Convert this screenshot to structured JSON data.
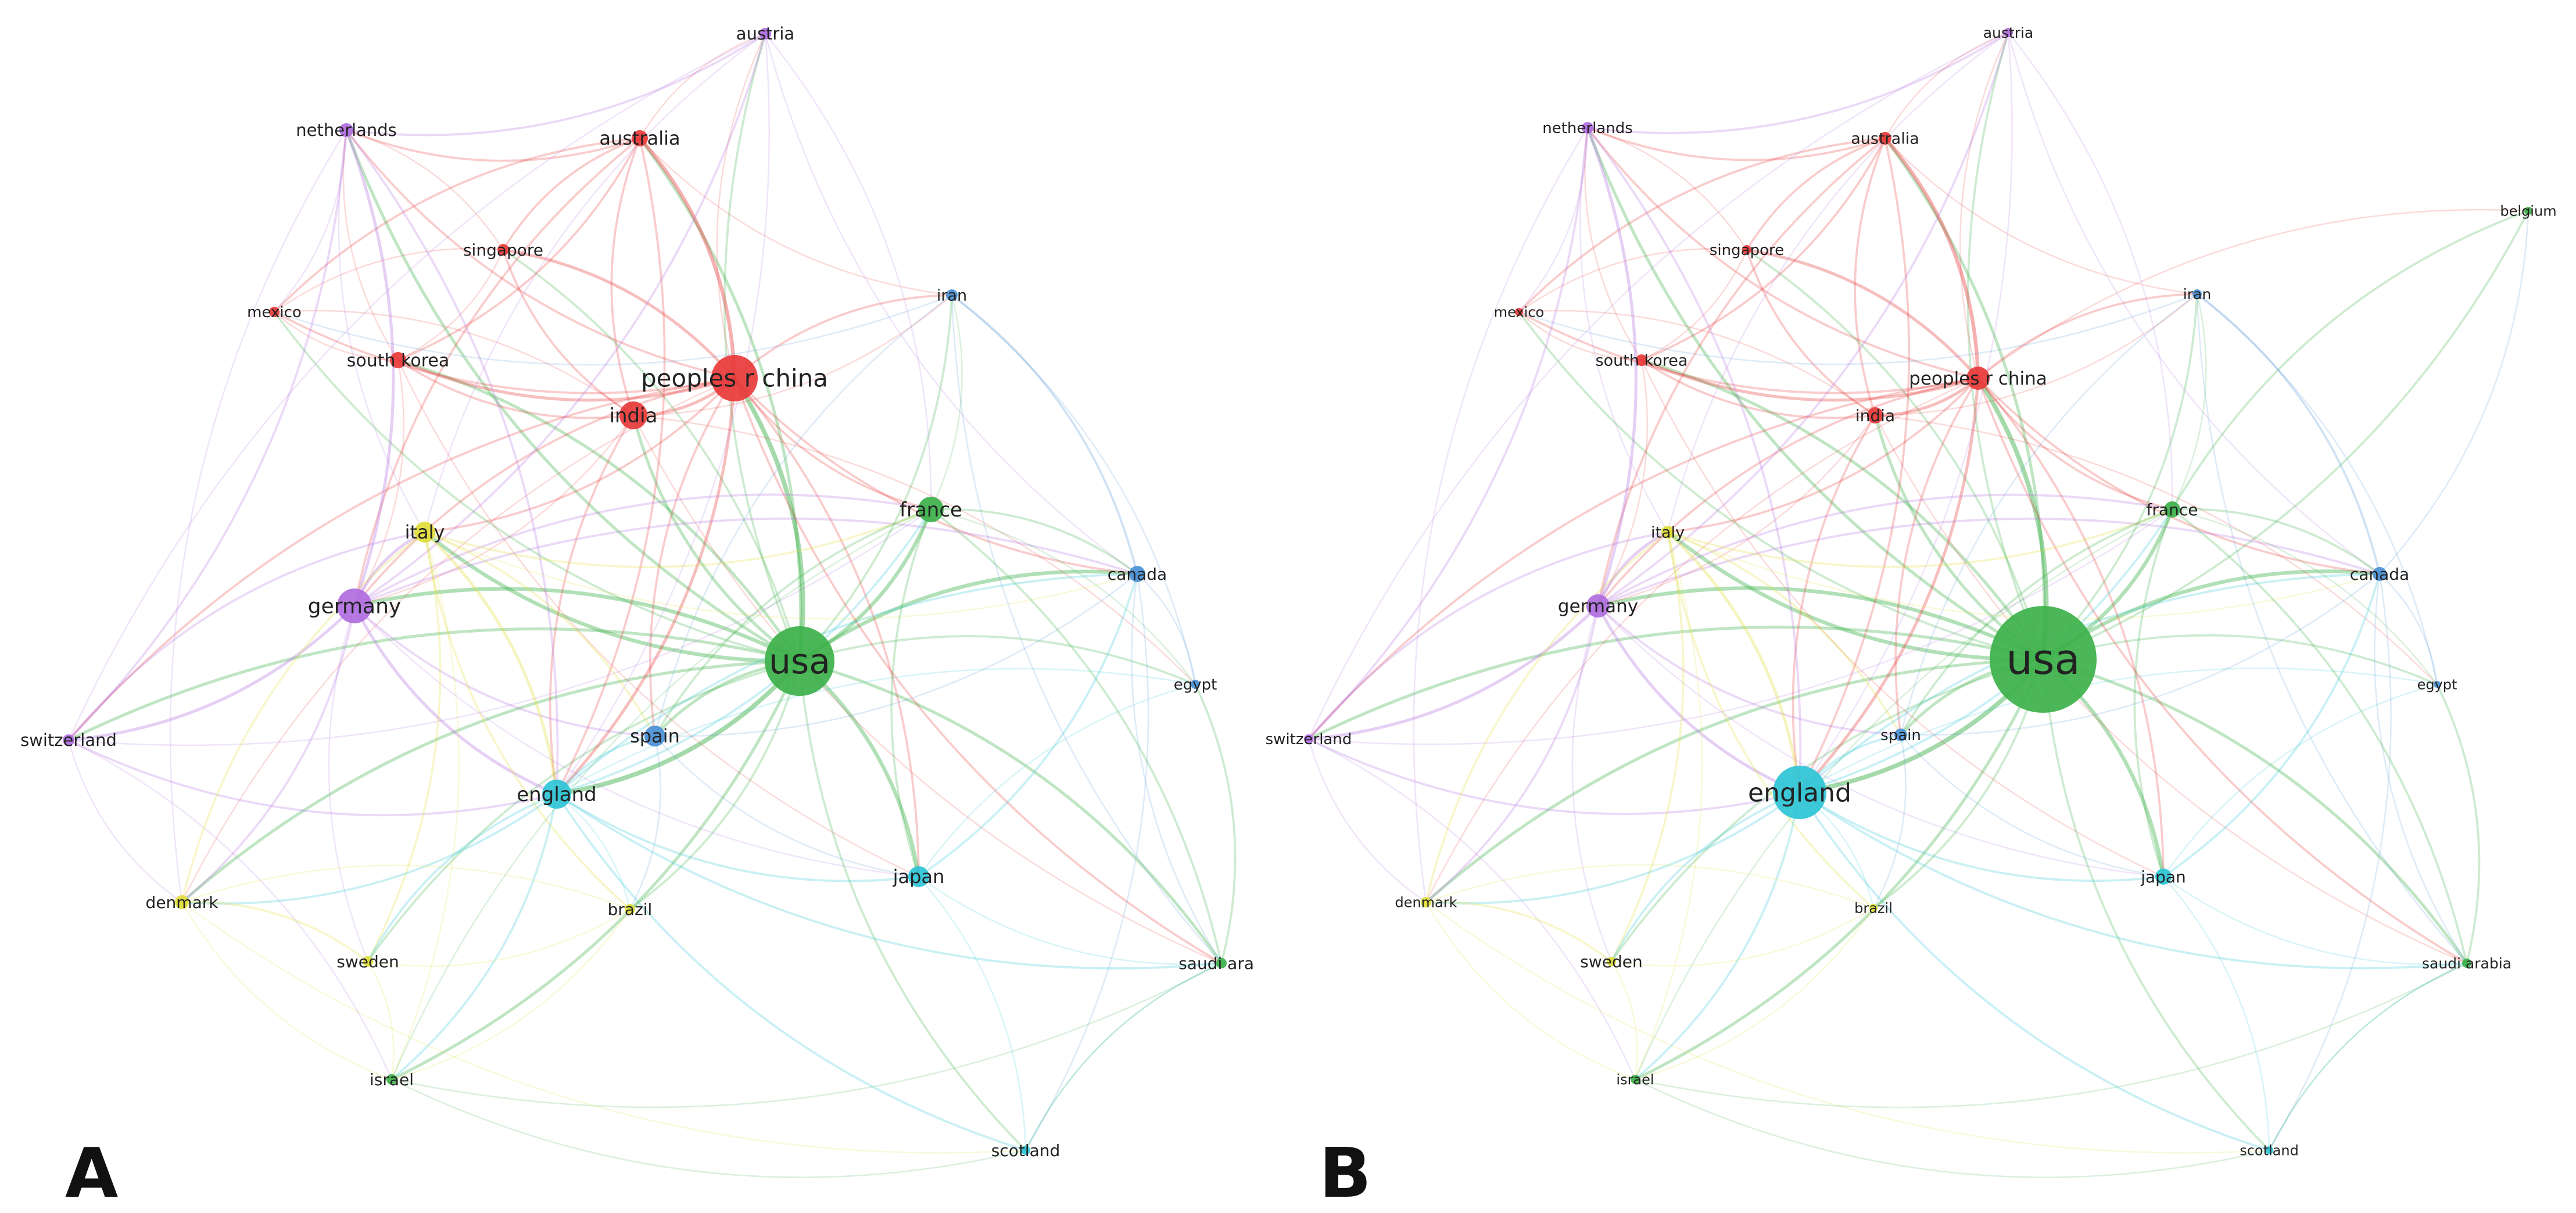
{
  "colors": {
    "red_cluster": "#e8393a",
    "green_cluster": "#3db14a",
    "blue_cluster": "#4a90d6",
    "purple_cluster": "#b06ee0",
    "yellow_cluster": "#e0dd3a",
    "cyan_cluster": "#2ec4d6"
  },
  "panels": [
    {
      "letter": "A",
      "nodes": [
        {
          "id": "usa",
          "label": "usa",
          "cluster": "green_cluster"
        },
        {
          "id": "peoples_r_china",
          "label": "peoples r china",
          "cluster": "red_cluster"
        },
        {
          "id": "england",
          "label": "england",
          "cluster": "cyan_cluster"
        },
        {
          "id": "germany",
          "label": "germany",
          "cluster": "purple_cluster"
        },
        {
          "id": "india",
          "label": "india",
          "cluster": "red_cluster"
        },
        {
          "id": "france",
          "label": "france",
          "cluster": "green_cluster"
        },
        {
          "id": "italy",
          "label": "italy",
          "cluster": "yellow_cluster"
        },
        {
          "id": "spain",
          "label": "spain",
          "cluster": "blue_cluster"
        },
        {
          "id": "japan",
          "label": "japan",
          "cluster": "cyan_cluster"
        },
        {
          "id": "australia",
          "label": "australia",
          "cluster": "red_cluster"
        },
        {
          "id": "canada",
          "label": "canada",
          "cluster": "blue_cluster"
        },
        {
          "id": "south_korea",
          "label": "south korea",
          "cluster": "red_cluster"
        },
        {
          "id": "netherlands",
          "label": "netherlands",
          "cluster": "purple_cluster"
        },
        {
          "id": "switzerland",
          "label": "switzerland",
          "cluster": "purple_cluster"
        },
        {
          "id": "austria",
          "label": "austria",
          "cluster": "purple_cluster"
        },
        {
          "id": "singapore",
          "label": "singapore",
          "cluster": "red_cluster"
        },
        {
          "id": "mexico",
          "label": "mexico",
          "cluster": "red_cluster"
        },
        {
          "id": "iran",
          "label": "iran",
          "cluster": "blue_cluster"
        },
        {
          "id": "egypt",
          "label": "egypt",
          "cluster": "blue_cluster"
        },
        {
          "id": "denmark",
          "label": "denmark",
          "cluster": "yellow_cluster"
        },
        {
          "id": "brazil",
          "label": "brazil",
          "cluster": "yellow_cluster"
        },
        {
          "id": "sweden",
          "label": "sweden",
          "cluster": "yellow_cluster"
        },
        {
          "id": "israel",
          "label": "israel",
          "cluster": "green_cluster"
        },
        {
          "id": "scotland",
          "label": "scotland",
          "cluster": "cyan_cluster"
        },
        {
          "id": "saudi_arabia",
          "label": "saudi arab",
          "cluster": "green_cluster"
        }
      ]
    },
    {
      "letter": "B",
      "nodes": [
        {
          "id": "usa",
          "label": "usa",
          "cluster": "green_cluster"
        },
        {
          "id": "england",
          "label": "england",
          "cluster": "cyan_cluster"
        },
        {
          "id": "peoples_r_china",
          "label": "peoples r china",
          "cluster": "red_cluster"
        },
        {
          "id": "germany",
          "label": "germany",
          "cluster": "purple_cluster"
        },
        {
          "id": "india",
          "label": "india",
          "cluster": "red_cluster"
        },
        {
          "id": "france",
          "label": "france",
          "cluster": "green_cluster"
        },
        {
          "id": "italy",
          "label": "italy",
          "cluster": "yellow_cluster"
        },
        {
          "id": "spain",
          "label": "spain",
          "cluster": "blue_cluster"
        },
        {
          "id": "japan",
          "label": "japan",
          "cluster": "cyan_cluster"
        },
        {
          "id": "australia",
          "label": "australia",
          "cluster": "red_cluster"
        },
        {
          "id": "canada",
          "label": "canada",
          "cluster": "blue_cluster"
        },
        {
          "id": "south_korea",
          "label": "south korea",
          "cluster": "red_cluster"
        },
        {
          "id": "netherlands",
          "label": "netherlands",
          "cluster": "purple_cluster"
        },
        {
          "id": "switzerland",
          "label": "switzerland",
          "cluster": "purple_cluster"
        },
        {
          "id": "austria",
          "label": "austria",
          "cluster": "purple_cluster"
        },
        {
          "id": "singapore",
          "label": "singapore",
          "cluster": "red_cluster"
        },
        {
          "id": "mexico",
          "label": "mexico",
          "cluster": "red_cluster"
        },
        {
          "id": "iran",
          "label": "iran",
          "cluster": "blue_cluster"
        },
        {
          "id": "egypt",
          "label": "egypt",
          "cluster": "blue_cluster"
        },
        {
          "id": "belgium",
          "label": "belgium",
          "cluster": "green_cluster"
        },
        {
          "id": "denmark",
          "label": "denmark",
          "cluster": "yellow_cluster"
        },
        {
          "id": "brazil",
          "label": "brazil",
          "cluster": "yellow_cluster"
        },
        {
          "id": "sweden",
          "label": "sweden",
          "cluster": "yellow_cluster"
        },
        {
          "id": "israel",
          "label": "israel",
          "cluster": "green_cluster"
        },
        {
          "id": "scotland",
          "label": "scotland",
          "cluster": "cyan_cluster"
        },
        {
          "id": "saudi_arabia",
          "label": "saudi arabia",
          "cluster": "green_cluster"
        }
      ]
    }
  ]
}
